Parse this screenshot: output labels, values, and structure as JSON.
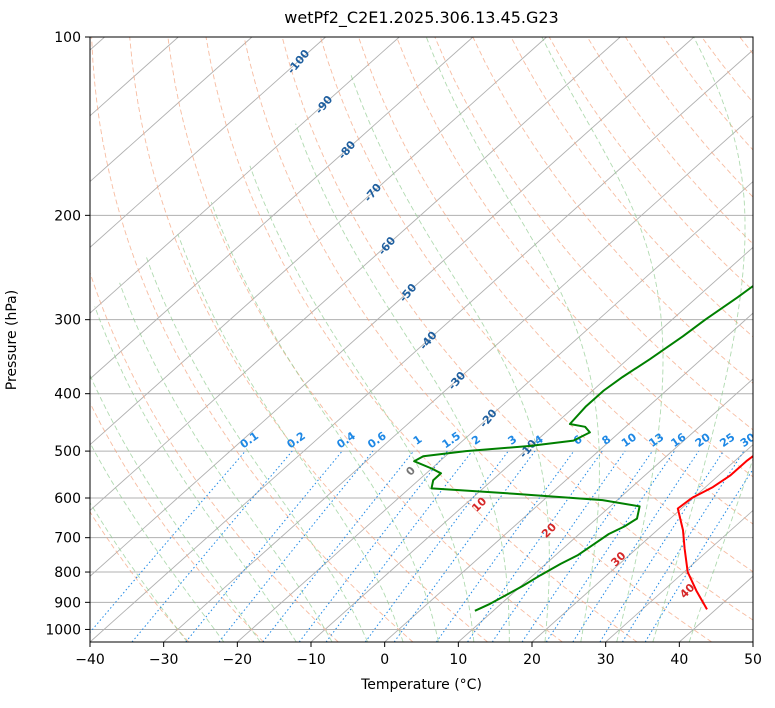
{
  "chart_data": {
    "type": "line",
    "title": "wetPf2_C2E1.2025.306.13.45.G23",
    "xlabel": "Temperature (°C)",
    "ylabel": "Pressure (hPa)",
    "xlim": [
      -40,
      50
    ],
    "ylim": [
      1050,
      100
    ],
    "y_scale": "log",
    "x_ticks": [
      -40,
      -30,
      -20,
      -10,
      0,
      10,
      20,
      30,
      40,
      50
    ],
    "y_ticks": [
      100,
      200,
      300,
      400,
      500,
      600,
      700,
      800,
      900,
      1000
    ],
    "series": [
      {
        "name": "temperature",
        "color": "#ff0000",
        "points": [
          [
            38.8,
            925
          ],
          [
            34.5,
            860
          ],
          [
            30.5,
            800
          ],
          [
            26.5,
            730
          ],
          [
            23.5,
            680
          ],
          [
            19.5,
            625
          ],
          [
            19.8,
            600
          ],
          [
            21.0,
            575
          ],
          [
            21.6,
            550
          ],
          [
            21.6,
            520
          ],
          [
            22.0,
            490
          ],
          [
            21.5,
            460
          ],
          [
            20.5,
            430
          ],
          [
            18.5,
            390
          ],
          [
            16.5,
            360
          ],
          [
            14.5,
            330
          ],
          [
            12.7,
            300
          ],
          [
            10.5,
            275
          ],
          [
            8.5,
            255
          ],
          [
            7.0,
            240
          ],
          [
            5.5,
            222
          ],
          [
            4.0,
            205
          ],
          [
            3.0,
            190
          ],
          [
            1.5,
            170
          ],
          [
            0.3,
            155
          ],
          [
            -0.5,
            140
          ],
          [
            -1.2,
            125
          ],
          [
            -1.0,
            115
          ],
          [
            0.5,
            107
          ],
          [
            2.3,
            100
          ]
        ]
      },
      {
        "name": "dewpoint",
        "color": "#008000",
        "points": [
          [
            7.5,
            930
          ],
          [
            8.5,
            905
          ],
          [
            9.5,
            870
          ],
          [
            10.2,
            845
          ],
          [
            11.0,
            810
          ],
          [
            12.0,
            775
          ],
          [
            13.0,
            750
          ],
          [
            13.5,
            720
          ],
          [
            14.0,
            690
          ],
          [
            15.0,
            670
          ],
          [
            15.5,
            650
          ],
          [
            14.0,
            620
          ],
          [
            8.0,
            605
          ],
          [
            -5.0,
            590
          ],
          [
            -17.0,
            578
          ],
          [
            -18.0,
            560
          ],
          [
            -18.0,
            545
          ],
          [
            -20.0,
            535
          ],
          [
            -23.5,
            520
          ],
          [
            -23.0,
            510
          ],
          [
            -18.0,
            500
          ],
          [
            -10.0,
            490
          ],
          [
            -5.0,
            480
          ],
          [
            -4.0,
            465
          ],
          [
            -5.5,
            455
          ],
          [
            -8.0,
            450
          ],
          [
            -8.5,
            420
          ],
          [
            -8.5,
            395
          ],
          [
            -8.0,
            375
          ],
          [
            -7.0,
            350
          ],
          [
            -6.0,
            320
          ],
          [
            -5.5,
            300
          ],
          [
            -4.5,
            275
          ],
          [
            -3.5,
            245
          ],
          [
            -2.0,
            228
          ],
          [
            0.5,
            210
          ],
          [
            2.0,
            200
          ],
          [
            2.0,
            190
          ],
          [
            0.5,
            180
          ],
          [
            -0.5,
            168
          ],
          [
            -1.0,
            155
          ],
          [
            -0.8,
            145
          ],
          [
            -0.8,
            135
          ],
          [
            -1.0,
            125
          ],
          [
            -1.3,
            118
          ],
          [
            -0.5,
            111
          ],
          [
            -0.2,
            105
          ],
          [
            0.2,
            100
          ]
        ]
      }
    ],
    "dry_adiabat_labels": [
      "-100",
      "-90",
      "-80",
      "-70",
      "-60",
      "-50",
      "-40",
      "-30",
      "-20",
      "-10"
    ],
    "mixing_ratio_labels": [
      "0.1",
      "0.2",
      "0.4",
      "0.6",
      "1",
      "1.5",
      "2",
      "3",
      "4",
      "6",
      "8",
      "10",
      "13",
      "16",
      "20",
      "25",
      "30",
      "36"
    ],
    "isotherm_labels": [
      "0",
      "10",
      "20",
      "30",
      "40"
    ]
  }
}
